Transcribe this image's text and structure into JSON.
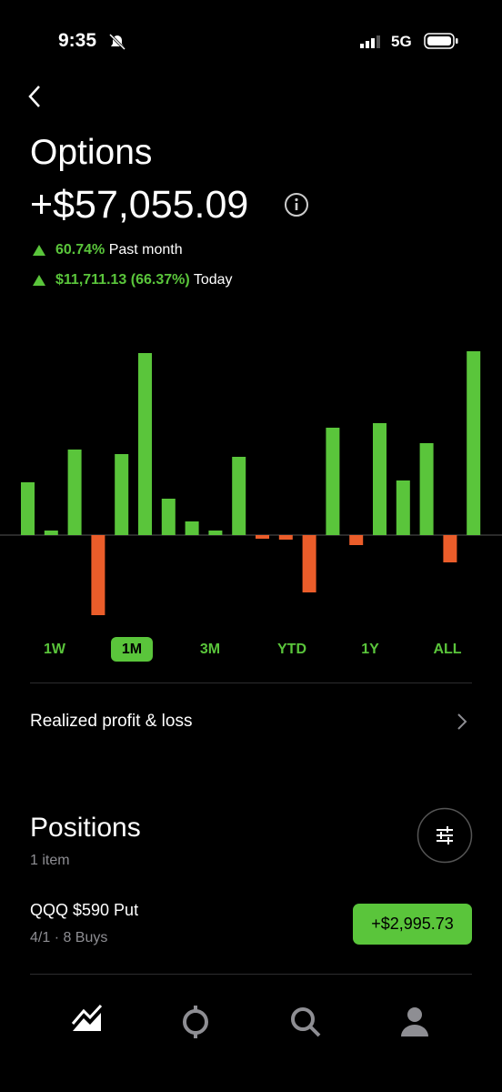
{
  "status_bar": {
    "time": "9:35",
    "network": "5G"
  },
  "header": {
    "title": "Options",
    "value": "+$57,055.09",
    "changes": [
      {
        "amount": "60.74%",
        "period": "Past month"
      },
      {
        "amount": "$11,711.13 (66.37%)",
        "period": "Today"
      }
    ]
  },
  "chart_data": {
    "type": "bar",
    "values": [
      58,
      5,
      94,
      -88,
      89,
      200,
      40,
      15,
      5,
      86,
      -4,
      -5,
      -63,
      118,
      -11,
      123,
      60,
      101,
      -30,
      202
    ],
    "positive_color": "#5ac53b",
    "negative_color": "#eb5d2a",
    "ylim": [
      -110,
      210
    ]
  },
  "ranges": {
    "options": [
      "1W",
      "1M",
      "3M",
      "YTD",
      "1Y",
      "ALL"
    ],
    "selected": 1
  },
  "realized_link": "Realized profit & loss",
  "positions": {
    "title": "Positions",
    "count": "1 item",
    "items": [
      {
        "name": "QQQ $590 Put",
        "detail": "4/1 · 8 Buys",
        "value": "+$2,995.73"
      }
    ]
  }
}
